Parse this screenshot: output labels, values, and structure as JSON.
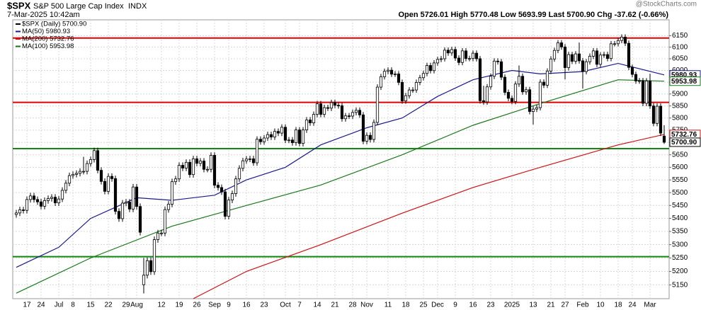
{
  "chart_data": {
    "type": "candlestick",
    "title": "$SPX",
    "subtitle": "S&P 500 Large Cap Index",
    "exchange": "INDX",
    "date": "7-Mar-2025 10:42am",
    "quote": "Open 5726.01  High 5770.48  Low 5693.99  Last 5700.90  Chg -37.62 (-0.66%)",
    "watermark": "@StockCharts.com",
    "log_scale": true,
    "grid": true,
    "ylim": [
      5100,
      6220
    ],
    "yticks": [
      5150,
      5200,
      5250,
      5300,
      5350,
      5400,
      5450,
      5500,
      5550,
      5600,
      5650,
      5700,
      5750,
      5800,
      5850,
      5900,
      5950,
      6000,
      6050,
      6100,
      6150
    ],
    "categories": [
      null,
      null,
      null,
      "17",
      null,
      null,
      null,
      "24",
      null,
      null,
      null,
      null,
      "Jul",
      null,
      null,
      null,
      "8",
      null,
      null,
      null,
      null,
      "15",
      null,
      null,
      null,
      null,
      "22",
      null,
      null,
      null,
      null,
      "29",
      null,
      null,
      "Aug",
      null,
      null,
      null,
      null,
      null,
      null,
      "12",
      null,
      null,
      null,
      null,
      "19",
      null,
      null,
      null,
      null,
      "26",
      null,
      null,
      null,
      null,
      "Sep",
      null,
      null,
      null,
      "9",
      null,
      null,
      null,
      null,
      "16",
      null,
      null,
      null,
      null,
      "23",
      null,
      null,
      null,
      null,
      null,
      "Oct",
      null,
      null,
      null,
      "7",
      null,
      null,
      null,
      null,
      "14",
      null,
      null,
      null,
      null,
      "21",
      null,
      null,
      null,
      null,
      "28",
      null,
      null,
      null,
      "Nov",
      null,
      null,
      null,
      null,
      null,
      "11",
      null,
      null,
      null,
      null,
      "18",
      null,
      null,
      null,
      null,
      "25",
      null,
      null,
      null,
      "Dec",
      null,
      null,
      null,
      null,
      "9",
      null,
      null,
      null,
      null,
      "16",
      null,
      null,
      null,
      null,
      "23",
      null,
      null,
      null,
      null,
      null,
      "2025",
      null,
      null,
      null,
      null,
      null,
      "13",
      null,
      null,
      null,
      null,
      "21",
      null,
      null,
      null,
      "27",
      null,
      null,
      null,
      null,
      "Feb",
      null,
      null,
      null,
      null,
      "10",
      null,
      null,
      null,
      null,
      "18",
      null,
      null,
      null,
      "24",
      null,
      null,
      null,
      null,
      "Mar",
      null,
      null,
      null,
      null
    ],
    "ohlc": {
      "name": "$SPX (Daily) 5700.90",
      "value_label": "5700.90",
      "color": "#000000",
      "open": [
        5415,
        5421,
        5433,
        5431,
        5473,
        5487,
        5473,
        5464,
        5447,
        5469,
        5477,
        5482,
        5460,
        5475,
        5509,
        5537,
        5567,
        5572,
        5576,
        5584,
        5584,
        5615,
        5631,
        5667,
        5588,
        5544,
        5505,
        5564,
        5555,
        5427,
        5399,
        5459,
        5463,
        5436,
        5522,
        5446,
        5151,
        5186,
        5240,
        5199,
        5319,
        5344,
        5344,
        5434,
        5455,
        5543,
        5554,
        5608,
        5597,
        5620,
        5571,
        5634,
        5616,
        5625,
        5592,
        5592,
        5648,
        5529,
        5520,
        5503,
        5408,
        5471,
        5496,
        5554,
        5596,
        5626,
        5633,
        5634,
        5618,
        5713,
        5703,
        5718,
        5732,
        5722,
        5745,
        5738,
        5762,
        5709,
        5710,
        5699,
        5751,
        5696,
        5751,
        5792,
        5780,
        5815,
        5859,
        5815,
        5843,
        5841,
        5864,
        5853,
        5851,
        5797,
        5809,
        5808,
        5823,
        5832,
        5813,
        5705,
        5729,
        5712,
        5782,
        5929,
        5973,
        5996,
        6001,
        5984,
        5985,
        5949,
        5871,
        5893,
        5917,
        5917,
        5949,
        5969,
        5987,
        6021,
        5999,
        6032,
        6047,
        6050,
        6087,
        6075,
        6090,
        6053,
        6034,
        6084,
        6051,
        6051,
        6074,
        6050,
        5872,
        5867,
        5930,
        5975,
        6040,
        6037,
        5971,
        5907,
        5882,
        5869,
        5942,
        5975,
        5909,
        5918,
        5827,
        5837,
        5843,
        5950,
        5937,
        5997,
        6049,
        6086,
        6119,
        6101,
        6012,
        6068,
        6039,
        6071,
        6041,
        5995,
        6037,
        6061,
        6084,
        6026,
        6066,
        6068,
        6051,
        6115,
        6115,
        6129,
        6144,
        6117,
        6013,
        5983,
        5955,
        5956,
        5861,
        5955,
        5850,
        5778,
        5849,
        5726.01
      ],
      "high": [
        5433,
        5445,
        5445,
        5485,
        5499,
        5499,
        5485,
        5476,
        5481,
        5489,
        5494,
        5494,
        5487,
        5521,
        5549,
        5579,
        5584,
        5588,
        5596,
        5642,
        5627,
        5643,
        5679,
        5679,
        5600,
        5556,
        5576,
        5576,
        5567,
        5439,
        5471,
        5475,
        5475,
        5534,
        5534,
        5458,
        5250,
        5252,
        5252,
        5331,
        5356,
        5356,
        5446,
        5467,
        5555,
        5566,
        5620,
        5620,
        5632,
        5632,
        5646,
        5646,
        5637,
        5637,
        5604,
        5660,
        5660,
        5541,
        5532,
        5515,
        5483,
        5508,
        5566,
        5608,
        5638,
        5645,
        5646,
        5646,
        5725,
        5725,
        5730,
        5744,
        5744,
        5757,
        5757,
        5774,
        5774,
        5722,
        5722,
        5763,
        5763,
        5763,
        5804,
        5804,
        5827,
        5871,
        5871,
        5855,
        5855,
        5876,
        5876,
        5865,
        5863,
        5821,
        5821,
        5835,
        5844,
        5844,
        5825,
        5741,
        5741,
        5794,
        5941,
        5985,
        6008,
        6013,
        6013,
        5997,
        5997,
        5961,
        5905,
        5929,
        5929,
        5961,
        5981,
        5999,
        6033,
        6033,
        6044,
        6059,
        6062,
        6099,
        6099,
        6102,
        6102,
        6065,
        6096,
        6096,
        6063,
        6086,
        6086,
        6062,
        5935,
        5942,
        5987,
        6052,
        6052,
        6049,
        5983,
        5919,
        5894,
        5954,
        6021,
        5987,
        5930,
        5930,
        5849,
        5855,
        5962,
        5962,
        6009,
        6061,
        6098,
        6131,
        6131,
        6113,
        6080,
        6080,
        6083,
        6120,
        6053,
        6049,
        6073,
        6096,
        6096,
        6078,
        6080,
        6080,
        6127,
        6127,
        6141,
        6156,
        6156,
        6129,
        6025,
        5995,
        5968,
        5968,
        5967,
        5986,
        5862,
        5861,
        5861,
        5770.48
      ],
      "low": [
        5403,
        5409,
        5419,
        5419,
        5461,
        5461,
        5452,
        5435,
        5435,
        5457,
        5465,
        5448,
        5448,
        5463,
        5497,
        5525,
        5555,
        5560,
        5564,
        5572,
        5572,
        5603,
        5619,
        5576,
        5532,
        5493,
        5493,
        5543,
        5415,
        5387,
        5387,
        5447,
        5424,
        5424,
        5434,
        5335,
        5119,
        5174,
        5187,
        5187,
        5307,
        5332,
        5332,
        5422,
        5443,
        5531,
        5542,
        5585,
        5585,
        5559,
        5559,
        5604,
        5604,
        5580,
        5580,
        5580,
        5517,
        5508,
        5491,
        5396,
        5396,
        5459,
        5484,
        5542,
        5584,
        5614,
        5621,
        5606,
        5606,
        5691,
        5691,
        5706,
        5710,
        5710,
        5726,
        5726,
        5697,
        5697,
        5687,
        5687,
        5684,
        5684,
        5739,
        5768,
        5768,
        5803,
        5803,
        5803,
        5829,
        5829,
        5841,
        5839,
        5785,
        5785,
        5796,
        5796,
        5811,
        5801,
        5693,
        5693,
        5700,
        5700,
        5770,
        5917,
        5961,
        5984,
        5972,
        5972,
        5937,
        5859,
        5859,
        5881,
        5905,
        5905,
        5937,
        5957,
        5975,
        5987,
        5987,
        6020,
        6035,
        6038,
        6063,
        6063,
        6041,
        6022,
        6022,
        6039,
        6039,
        6039,
        6038,
        5860,
        5855,
        5855,
        5918,
        5963,
        6025,
        5959,
        5895,
        5870,
        5857,
        5857,
        5930,
        5897,
        5897,
        5815,
        5773,
        5825,
        5831,
        5925,
        5925,
        5985,
        6037,
        6074,
        6089,
        5962,
        6000,
        6027,
        6027,
        6029,
        5923,
        5983,
        6025,
        6049,
        6014,
        6014,
        6054,
        6039,
        6039,
        6103,
        6103,
        6117,
        6105,
        6001,
        5971,
        5943,
        5943,
        5849,
        5849,
        5838,
        5766,
        5766,
        5726,
        5693.99
      ],
      "close": [
        5421,
        5433,
        5431,
        5473,
        5487,
        5473,
        5464,
        5447,
        5469,
        5477,
        5482,
        5460,
        5475,
        5509,
        5537,
        5567,
        5572,
        5576,
        5584,
        5584,
        5615,
        5631,
        5667,
        5588,
        5544,
        5505,
        5564,
        5555,
        5427,
        5399,
        5459,
        5463,
        5436,
        5522,
        5446,
        5347,
        5186,
        5240,
        5199,
        5319,
        5344,
        5344,
        5434,
        5455,
        5543,
        5554,
        5608,
        5597,
        5620,
        5571,
        5634,
        5616,
        5625,
        5592,
        5592,
        5648,
        5529,
        5520,
        5503,
        5408,
        5471,
        5496,
        5554,
        5596,
        5626,
        5633,
        5634,
        5618,
        5713,
        5703,
        5718,
        5732,
        5722,
        5745,
        5738,
        5762,
        5709,
        5710,
        5699,
        5751,
        5696,
        5751,
        5792,
        5780,
        5815,
        5859,
        5815,
        5843,
        5841,
        5864,
        5853,
        5851,
        5797,
        5809,
        5808,
        5823,
        5832,
        5813,
        5705,
        5729,
        5712,
        5782,
        5929,
        5973,
        5996,
        6001,
        5984,
        5985,
        5949,
        5871,
        5893,
        5917,
        5917,
        5949,
        5969,
        5987,
        6021,
        5999,
        6032,
        6047,
        6050,
        6087,
        6075,
        6090,
        6053,
        6034,
        6084,
        6051,
        6051,
        6074,
        6050,
        5872,
        5867,
        5930,
        5975,
        6040,
        6037,
        5971,
        5907,
        5882,
        5869,
        5942,
        5975,
        5909,
        5918,
        5827,
        5837,
        5843,
        5950,
        5937,
        5997,
        6049,
        6086,
        6119,
        6101,
        6012,
        6068,
        6039,
        6071,
        6041,
        5995,
        6037,
        6061,
        6084,
        6026,
        6066,
        6068,
        6051,
        6115,
        6115,
        6129,
        6144,
        6117,
        6013,
        5983,
        5955,
        5956,
        5861,
        5955,
        5850,
        5778,
        5849,
        5738,
        5700.9
      ]
    },
    "series": [
      {
        "name": "MA(50) 5980.93",
        "value_label": "5980.93",
        "color": "#1a1a8c",
        "x": [
          0,
          12,
          21,
          34,
          44,
          56,
          65,
          76,
          86,
          99,
          109,
          119,
          129,
          140,
          148,
          160,
          170,
          183
        ],
        "values": [
          5215,
          5290,
          5400,
          5480,
          5470,
          5490,
          5550,
          5600,
          5690,
          5760,
          5800,
          5890,
          5960,
          6000,
          5985,
          5995,
          6030,
          5980.93
        ]
      },
      {
        "name": "MA(200) 5732.76",
        "value_label": "5732.76",
        "color": "#d01010",
        "x": [
          50,
          65,
          86,
          109,
          129,
          148,
          170,
          183
        ],
        "values": [
          5100,
          5200,
          5300,
          5420,
          5520,
          5600,
          5690,
          5732.76
        ]
      },
      {
        "name": "MA(100) 5953.98",
        "value_label": "5953.98",
        "color": "#1a7a1a",
        "x": [
          0,
          21,
          44,
          65,
          86,
          109,
          129,
          148,
          170,
          183
        ],
        "values": [
          5120,
          5250,
          5370,
          5450,
          5530,
          5650,
          5770,
          5860,
          5960,
          5953.98
        ]
      }
    ],
    "hlines": [
      {
        "value": 6140,
        "color": "#e00000"
      },
      {
        "value": 5865,
        "color": "#e00000"
      },
      {
        "value": 5675,
        "color": "#118811"
      },
      {
        "value": 5255,
        "color": "#118811"
      }
    ]
  }
}
